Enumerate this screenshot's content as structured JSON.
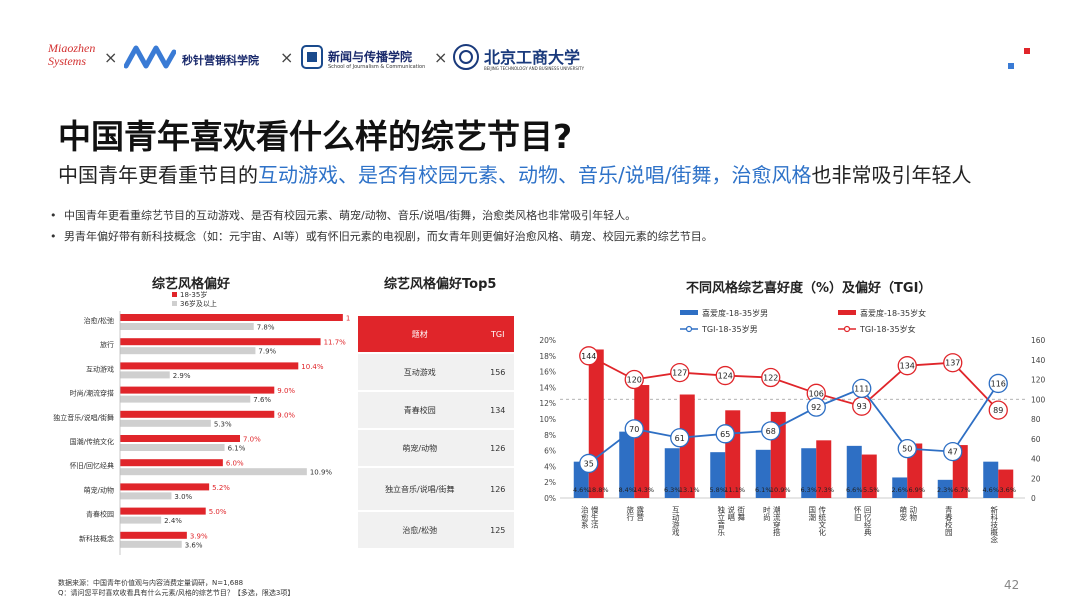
{
  "header": {
    "logo_miaozhen": "Miaozhen Systems",
    "logo_mz_text": "秒针营销科学院",
    "logo_school": "新闻与传播学院",
    "logo_school_sub": "School of Journalism & Communication",
    "logo_btbu": "北京工商大学",
    "logo_btbu_sub": "BEIJING TECHNOLOGY AND BUSINESS UNIVERSITY",
    "times": "×",
    "accent": "#e0252a",
    "blue": "#2e72c8"
  },
  "title": "中国青年喜欢看什么样的综艺节目?",
  "subtitle": {
    "pre": "中国青年更看重节目的",
    "hl1": "互动游戏、是否有校园元素、动物、音乐/说唱/街舞，治愈风格",
    "post": "也非常吸引年轻人"
  },
  "bullets": [
    "中国青年更看重综艺节目的互动游戏、是否有校园元素、萌宠/动物、音乐/说唱/街舞，治愈类风格也非常吸引年轻人。",
    "男青年偏好带有新科技概念（如：元宇宙、AI等）或有怀旧元素的电视剧，而女青年则更偏好治愈风格、萌宠、校园元素的综艺节目。"
  ],
  "footer": {
    "source": "数据来源：中国青年价值观与内容消费定量调研，N=1,688",
    "question": "Q：请问您平时喜欢收看具有什么元素/风格的综艺节目？【多选，限选3项】",
    "page": "42"
  },
  "top5": {
    "title": "综艺风格偏好Top5",
    "headers": [
      "题材",
      "TGI"
    ],
    "rows": [
      [
        "互动游戏",
        "156"
      ],
      [
        "青春校园",
        "134"
      ],
      [
        "萌宠/动物",
        "126"
      ],
      [
        "独立音乐/说唱/街舞",
        "126"
      ],
      [
        "治愈/松弛",
        "125"
      ]
    ]
  },
  "chart_data": [
    {
      "type": "bar",
      "orientation": "horizontal",
      "title": "综艺风格偏好",
      "categories": [
        "治愈/松弛",
        "旅行",
        "互动游戏",
        "时尚/潮流穿搭",
        "独立音乐/说唱/街舞",
        "国潮/传统文化",
        "怀旧/回忆经典",
        "萌宠/动物",
        "青春校园",
        "新科技概念"
      ],
      "series": [
        {
          "name": "18-35岁",
          "color": "#e0252a",
          "values": [
            13.0,
            11.7,
            10.4,
            9.0,
            9.0,
            7.0,
            6.0,
            5.2,
            5.0,
            3.9
          ]
        },
        {
          "name": "36岁及以上",
          "color": "#cfcfcf",
          "values": [
            7.8,
            7.9,
            2.9,
            7.6,
            5.3,
            6.1,
            10.9,
            3.0,
            2.4,
            3.6
          ]
        }
      ],
      "legend": "top",
      "grid": false
    },
    {
      "type": "bar+line",
      "title": "不同风格综艺喜好度（%）及偏好（TGI）",
      "categories": [
        "治愈系 慢生活",
        "旅行 露营",
        "互动游戏",
        "独立音乐 说唱 街舞",
        "时尚 潮流穿搭",
        "国潮 传统文化",
        "怀旧 回忆经典",
        "萌宠 动物",
        "青春校园",
        "新科技概念"
      ],
      "bar_series": [
        {
          "name": "喜爱度-18-35岁男",
          "color": "#2e6fc4",
          "values": [
            4.6,
            8.4,
            6.3,
            5.8,
            6.1,
            6.3,
            6.6,
            2.6,
            2.3,
            4.6
          ],
          "labels": [
            "4.6%",
            "8.4%",
            "6.3%",
            "5.8%",
            "6.1%",
            "6.3%",
            "6.6%",
            "2.6%",
            "2.3%",
            "4.6%"
          ]
        },
        {
          "name": "喜爱度-18-35岁女",
          "color": "#e0252a",
          "values": [
            18.8,
            14.3,
            13.1,
            11.1,
            10.9,
            7.3,
            5.5,
            6.9,
            6.7,
            3.6
          ],
          "labels": [
            "18.8%",
            "14.3%",
            "13.1%",
            "11.1%",
            "10.9%",
            "7.3%",
            "5.5%",
            "6.9%",
            "6.7%",
            "3.6%"
          ]
        }
      ],
      "line_series": [
        {
          "name": "TGI-18-35岁男",
          "color": "#2e6fc4",
          "values": [
            35,
            70,
            61,
            65,
            68,
            92,
            111,
            50,
            47,
            116
          ]
        },
        {
          "name": "TGI-18-35岁女",
          "color": "#e0252a",
          "values": [
            144,
            120,
            127,
            124,
            122,
            106,
            93,
            134,
            137,
            89
          ]
        }
      ],
      "y_left": {
        "min": 0,
        "max": 20,
        "ticks": [
          "0%",
          "2%",
          "4%",
          "6%",
          "8%",
          "10%",
          "12%",
          "14%",
          "16%",
          "18%",
          "20%"
        ]
      },
      "y_right": {
        "min": 0,
        "max": 160,
        "ticks": [
          "0",
          "20",
          "40",
          "60",
          "80",
          "100",
          "120",
          "140",
          "160"
        ]
      },
      "reference_line_tgi": 100,
      "legend": "top",
      "grid": false
    }
  ]
}
